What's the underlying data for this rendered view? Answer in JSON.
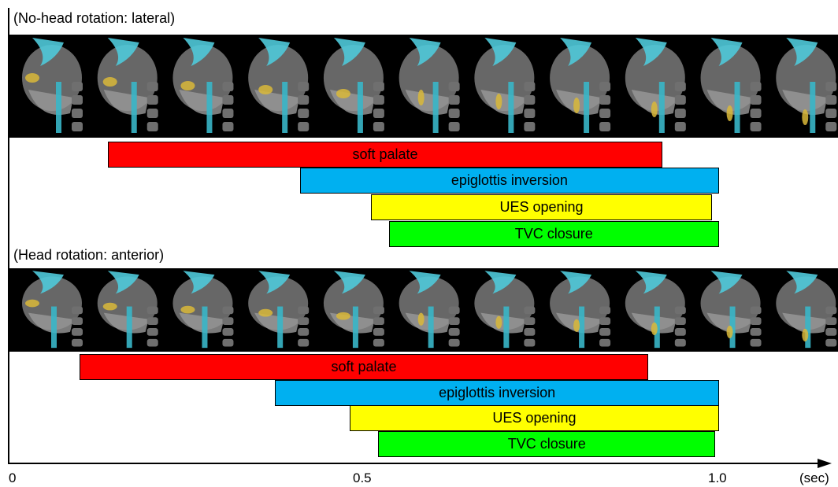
{
  "diagram": {
    "type": "timeline",
    "sections": [
      {
        "title": "(No-head rotation: lateral)",
        "frames": 11,
        "events": [
          {
            "label": "soft palate",
            "start": 0.14,
            "end": 0.92,
            "color": "#ff0000"
          },
          {
            "label": "epiglottis inversion",
            "start": 0.41,
            "end": 1.0,
            "color": "#00b0f0"
          },
          {
            "label": "UES opening",
            "start": 0.51,
            "end": 0.99,
            "color": "#ffff00"
          },
          {
            "label": "TVC closure",
            "start": 0.535,
            "end": 1.0,
            "color": "#00ff00"
          }
        ]
      },
      {
        "title": "(Head rotation: anterior)",
        "frames": 11,
        "events": [
          {
            "label": "soft palate",
            "start": 0.1,
            "end": 0.9,
            "color": "#ff0000"
          },
          {
            "label": "epiglottis inversion",
            "start": 0.375,
            "end": 1.0,
            "color": "#00b0f0"
          },
          {
            "label": "UES opening",
            "start": 0.48,
            "end": 1.0,
            "color": "#ffff00"
          },
          {
            "label": "TVC closure",
            "start": 0.52,
            "end": 0.995,
            "color": "#00ff00"
          }
        ]
      }
    ],
    "axis": {
      "ticks": [
        "0",
        "0.5",
        "1.0"
      ],
      "tick_values": [
        0,
        0.5,
        1.0
      ],
      "unit": "(sec)"
    }
  }
}
